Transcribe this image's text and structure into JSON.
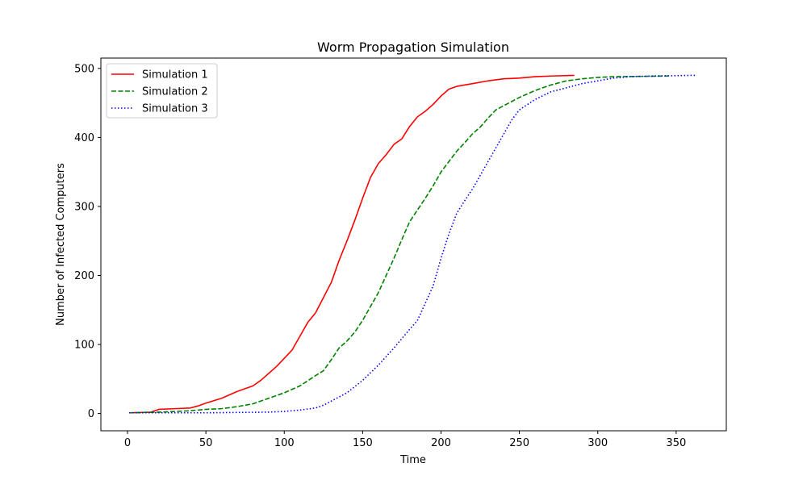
{
  "chart_data": {
    "type": "line",
    "title": "Worm Propagation Simulation",
    "xlabel": "Time",
    "ylabel": "Number of Infected Computers",
    "xlim": [
      -17,
      382
    ],
    "ylim": [
      -25,
      515
    ],
    "xticks": [
      0,
      50,
      100,
      150,
      200,
      250,
      300,
      350
    ],
    "yticks": [
      0,
      100,
      200,
      300,
      400,
      500
    ],
    "grid": false,
    "legend_position": "top-left",
    "series": [
      {
        "name": "Simulation 1",
        "color": "#ff0000",
        "style": "solid",
        "points": [
          [
            1,
            1
          ],
          [
            15,
            2
          ],
          [
            20,
            6
          ],
          [
            30,
            7
          ],
          [
            40,
            8
          ],
          [
            45,
            11
          ],
          [
            50,
            15
          ],
          [
            60,
            22
          ],
          [
            70,
            32
          ],
          [
            80,
            40
          ],
          [
            85,
            48
          ],
          [
            90,
            58
          ],
          [
            95,
            68
          ],
          [
            100,
            80
          ],
          [
            105,
            92
          ],
          [
            110,
            112
          ],
          [
            115,
            132
          ],
          [
            120,
            146
          ],
          [
            125,
            168
          ],
          [
            130,
            190
          ],
          [
            135,
            222
          ],
          [
            140,
            250
          ],
          [
            145,
            280
          ],
          [
            150,
            312
          ],
          [
            155,
            342
          ],
          [
            160,
            362
          ],
          [
            165,
            375
          ],
          [
            170,
            390
          ],
          [
            175,
            398
          ],
          [
            180,
            416
          ],
          [
            185,
            430
          ],
          [
            190,
            438
          ],
          [
            195,
            448
          ],
          [
            200,
            460
          ],
          [
            205,
            470
          ],
          [
            210,
            474
          ],
          [
            220,
            478
          ],
          [
            230,
            482
          ],
          [
            240,
            485
          ],
          [
            250,
            486
          ],
          [
            260,
            488
          ],
          [
            270,
            489
          ],
          [
            285,
            490
          ]
        ]
      },
      {
        "name": "Simulation 2",
        "color": "#008000",
        "style": "dashed",
        "points": [
          [
            1,
            1
          ],
          [
            20,
            2
          ],
          [
            40,
            4
          ],
          [
            50,
            6
          ],
          [
            60,
            7
          ],
          [
            70,
            10
          ],
          [
            80,
            14
          ],
          [
            90,
            22
          ],
          [
            100,
            30
          ],
          [
            110,
            40
          ],
          [
            120,
            55
          ],
          [
            125,
            62
          ],
          [
            130,
            78
          ],
          [
            135,
            95
          ],
          [
            140,
            105
          ],
          [
            145,
            118
          ],
          [
            150,
            135
          ],
          [
            155,
            155
          ],
          [
            160,
            175
          ],
          [
            165,
            200
          ],
          [
            170,
            225
          ],
          [
            175,
            252
          ],
          [
            180,
            278
          ],
          [
            185,
            295
          ],
          [
            190,
            312
          ],
          [
            195,
            330
          ],
          [
            200,
            350
          ],
          [
            205,
            365
          ],
          [
            210,
            380
          ],
          [
            215,
            392
          ],
          [
            220,
            405
          ],
          [
            225,
            415
          ],
          [
            230,
            428
          ],
          [
            235,
            440
          ],
          [
            240,
            446
          ],
          [
            245,
            452
          ],
          [
            250,
            458
          ],
          [
            260,
            468
          ],
          [
            270,
            476
          ],
          [
            280,
            482
          ],
          [
            290,
            485
          ],
          [
            300,
            487
          ],
          [
            310,
            488
          ],
          [
            345,
            489
          ]
        ]
      },
      {
        "name": "Simulation 3",
        "color": "#0000ff",
        "style": "dotted",
        "points": [
          [
            1,
            1
          ],
          [
            50,
            1
          ],
          [
            90,
            2
          ],
          [
            100,
            3
          ],
          [
            110,
            5
          ],
          [
            120,
            8
          ],
          [
            125,
            12
          ],
          [
            130,
            18
          ],
          [
            140,
            30
          ],
          [
            150,
            48
          ],
          [
            160,
            70
          ],
          [
            170,
            95
          ],
          [
            180,
            122
          ],
          [
            185,
            135
          ],
          [
            190,
            160
          ],
          [
            195,
            185
          ],
          [
            200,
            225
          ],
          [
            205,
            260
          ],
          [
            210,
            290
          ],
          [
            215,
            308
          ],
          [
            220,
            325
          ],
          [
            225,
            345
          ],
          [
            230,
            365
          ],
          [
            235,
            385
          ],
          [
            240,
            405
          ],
          [
            245,
            425
          ],
          [
            250,
            440
          ],
          [
            260,
            455
          ],
          [
            270,
            466
          ],
          [
            280,
            472
          ],
          [
            290,
            478
          ],
          [
            300,
            482
          ],
          [
            310,
            486
          ],
          [
            320,
            488
          ],
          [
            335,
            489
          ],
          [
            362,
            490
          ]
        ]
      }
    ]
  }
}
